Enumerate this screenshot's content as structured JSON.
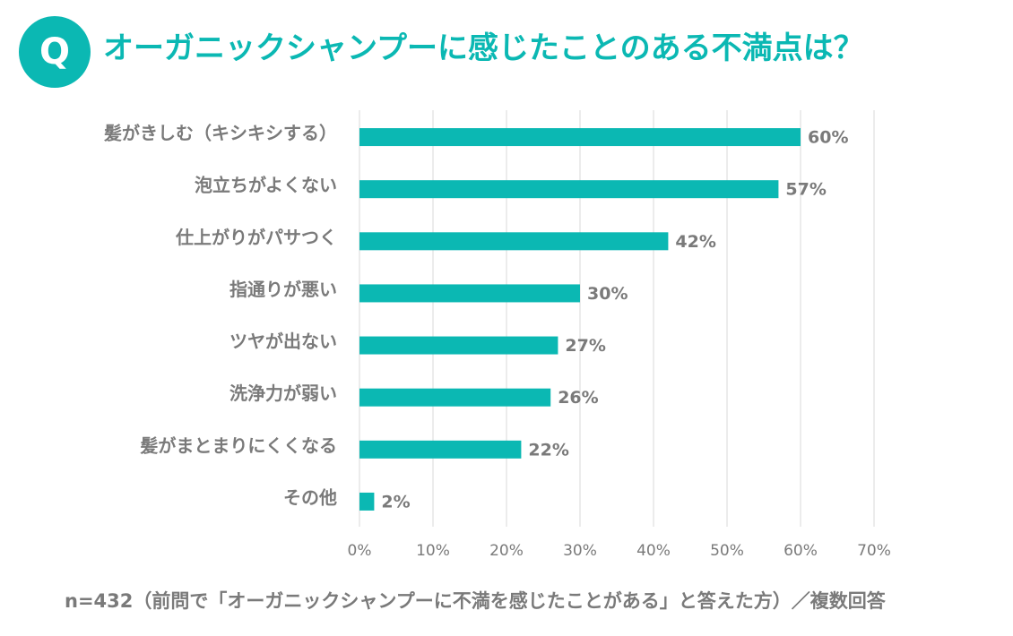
{
  "badge": "Q",
  "title": "オーガニックシャンプーに感じたことのある不満点は？",
  "footnote": "n=432（前問で「オーガニックシャンプーに不満を感じたことがある」と答えた方）／複数回答",
  "colors": {
    "accent": "#0bb8b3",
    "bar": "#0bb8b3",
    "label_text": "#7a7a7a",
    "grid": "#d9d9d9"
  },
  "chart_data": {
    "type": "bar",
    "orientation": "horizontal",
    "categories": [
      "髪がきしむ（キシキシする）",
      "泡立ちがよくない",
      "仕上がりがパサつく",
      "指通りが悪い",
      "ツヤが出ない",
      "洗浄力が弱い",
      "髪がまとまりにくくなる",
      "その他"
    ],
    "values": [
      60,
      57,
      42,
      30,
      27,
      26,
      22,
      2
    ],
    "value_labels": [
      "60%",
      "57%",
      "42%",
      "30%",
      "27%",
      "26%",
      "22%",
      "2%"
    ],
    "xlim": [
      0,
      70
    ],
    "x_ticks": [
      "0%",
      "10%",
      "20%",
      "30%",
      "40%",
      "50%",
      "60%",
      "70%"
    ],
    "grid": true,
    "legend": "none",
    "xlabel": "",
    "ylabel": ""
  }
}
